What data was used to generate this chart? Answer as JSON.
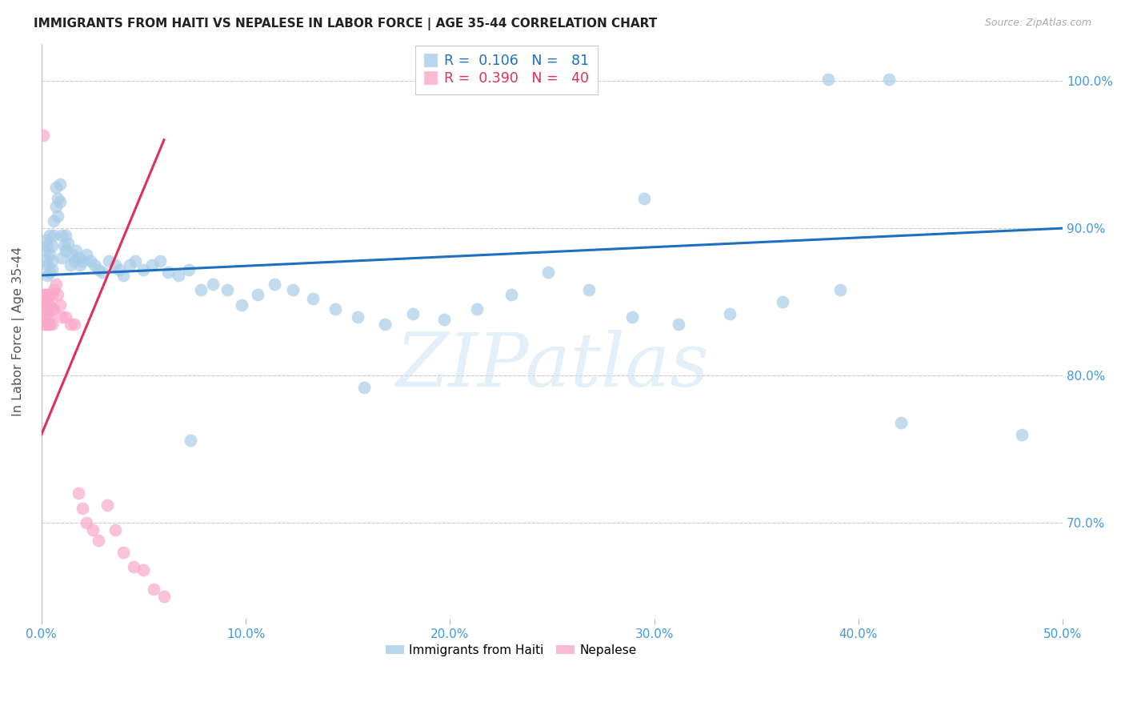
{
  "title": "IMMIGRANTS FROM HAITI VS NEPALESE IN LABOR FORCE | AGE 35-44 CORRELATION CHART",
  "source": "Source: ZipAtlas.com",
  "ylabel": "In Labor Force | Age 35-44",
  "xlim": [
    0.0,
    0.5
  ],
  "ylim": [
    0.635,
    1.025
  ],
  "xticks": [
    0.0,
    0.1,
    0.2,
    0.3,
    0.4,
    0.5
  ],
  "xticklabels": [
    "0.0%",
    "10.0%",
    "20.0%",
    "30.0%",
    "40.0%",
    "50.0%"
  ],
  "yticks": [
    0.7,
    0.8,
    0.9,
    1.0
  ],
  "yticklabels": [
    "70.0%",
    "80.0%",
    "90.0%",
    "100.0%"
  ],
  "haiti_color": "#a8cce8",
  "nepalese_color": "#f9a8c9",
  "haiti_line_color": "#1f6fbf",
  "nepalese_line_color": "#e0305a",
  "axis_tick_color": "#4499dd",
  "grid_color": "#cccccc",
  "background_color": "#ffffff",
  "watermark": "ZIPatlas",
  "haiti_x": [
    0.002,
    0.002,
    0.002,
    0.003,
    0.003,
    0.003,
    0.004,
    0.004,
    0.004,
    0.005,
    0.005,
    0.005,
    0.006,
    0.006,
    0.007,
    0.007,
    0.008,
    0.008,
    0.009,
    0.009,
    0.01,
    0.01,
    0.011,
    0.012,
    0.012,
    0.013,
    0.014,
    0.015,
    0.016,
    0.017,
    0.018,
    0.019,
    0.02,
    0.022,
    0.024,
    0.026,
    0.028,
    0.03,
    0.033,
    0.036,
    0.038,
    0.04,
    0.043,
    0.046,
    0.05,
    0.054,
    0.058,
    0.062,
    0.067,
    0.072,
    0.078,
    0.084,
    0.091,
    0.098,
    0.106,
    0.114,
    0.123,
    0.133,
    0.144,
    0.155,
    0.168,
    0.182,
    0.197,
    0.213,
    0.23,
    0.248,
    0.268,
    0.289,
    0.312,
    0.337,
    0.363,
    0.391,
    0.421,
    0.225,
    0.258,
    0.385,
    0.415,
    0.48,
    0.295,
    0.158,
    0.073
  ],
  "haiti_y": [
    0.885,
    0.892,
    0.878,
    0.888,
    0.875,
    0.868,
    0.882,
    0.87,
    0.895,
    0.878,
    0.872,
    0.888,
    0.895,
    0.905,
    0.915,
    0.928,
    0.92,
    0.908,
    0.93,
    0.918,
    0.895,
    0.88,
    0.888,
    0.895,
    0.885,
    0.89,
    0.875,
    0.882,
    0.878,
    0.885,
    0.88,
    0.875,
    0.878,
    0.882,
    0.878,
    0.875,
    0.872,
    0.87,
    0.878,
    0.875,
    0.872,
    0.868,
    0.875,
    0.878,
    0.872,
    0.875,
    0.878,
    0.87,
    0.868,
    0.872,
    0.858,
    0.862,
    0.858,
    0.848,
    0.855,
    0.862,
    0.858,
    0.852,
    0.845,
    0.84,
    0.835,
    0.842,
    0.838,
    0.845,
    0.855,
    0.87,
    0.858,
    0.84,
    0.835,
    0.842,
    0.85,
    0.858,
    0.768,
    1.001,
    1.001,
    1.001,
    1.001,
    0.76,
    0.92,
    0.792,
    0.756
  ],
  "nepalese_x": [
    0.0008,
    0.001,
    0.001,
    0.001,
    0.0015,
    0.002,
    0.002,
    0.002,
    0.003,
    0.003,
    0.003,
    0.0035,
    0.004,
    0.004,
    0.004,
    0.005,
    0.005,
    0.005,
    0.006,
    0.006,
    0.007,
    0.008,
    0.009,
    0.01,
    0.012,
    0.014,
    0.016,
    0.018,
    0.02,
    0.022,
    0.025,
    0.028,
    0.032,
    0.036,
    0.04,
    0.045,
    0.05,
    0.055,
    0.06,
    0.001
  ],
  "nepalese_y": [
    0.855,
    0.848,
    0.84,
    0.835,
    0.85,
    0.855,
    0.845,
    0.835,
    0.85,
    0.842,
    0.835,
    0.855,
    0.848,
    0.84,
    0.835,
    0.855,
    0.845,
    0.835,
    0.858,
    0.845,
    0.862,
    0.855,
    0.848,
    0.84,
    0.84,
    0.835,
    0.835,
    0.72,
    0.71,
    0.7,
    0.695,
    0.688,
    0.712,
    0.695,
    0.68,
    0.67,
    0.668,
    0.655,
    0.65,
    0.963
  ],
  "haiti_trend_x0": 0.0,
  "haiti_trend_y0": 0.868,
  "haiti_trend_x1": 0.5,
  "haiti_trend_y1": 0.9,
  "nepalese_trend_x0": 0.0,
  "nepalese_trend_y0": 0.76,
  "nepalese_trend_x1": 0.06,
  "nepalese_trend_y1": 0.96
}
